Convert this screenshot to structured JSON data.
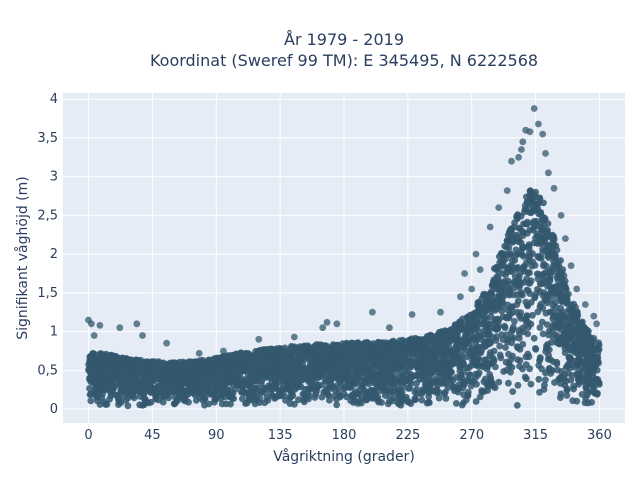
{
  "chart_data": {
    "type": "scatter",
    "title": "År 1979 - 2019",
    "subtitle": "Koordinat (Sweref 99 TM): E 345495, N 6222568",
    "xlabel": "Vågriktning (grader)",
    "ylabel": "Signifikant våghöjd (m)",
    "xlim": [
      -18,
      378
    ],
    "ylim": [
      -0.18,
      4.08
    ],
    "x_ticks": [
      0,
      45,
      90,
      135,
      180,
      225,
      270,
      315,
      360
    ],
    "x_tick_labels": [
      "0",
      "45",
      "90",
      "135",
      "180",
      "225",
      "270",
      "315",
      "360"
    ],
    "y_ticks": [
      0,
      0.5,
      1,
      1.5,
      2,
      2.5,
      3,
      3.5,
      4
    ],
    "y_tick_labels": [
      "0",
      "0,5",
      "1",
      "1,5",
      "2",
      "2,5",
      "3",
      "3,5",
      "4"
    ],
    "grid": true,
    "colors": {
      "marker": "#34586e",
      "plot_bg": "#e5ecf6",
      "grid": "#ffffff",
      "text": "#2a3f5f"
    },
    "envelope": {
      "direction": [
        0,
        15,
        30,
        45,
        60,
        75,
        90,
        105,
        120,
        135,
        150,
        165,
        180,
        195,
        210,
        225,
        240,
        255,
        270,
        280,
        290,
        300,
        310,
        315,
        320,
        330,
        340,
        350,
        360
      ],
      "typical_max_height": [
        0.75,
        0.7,
        0.65,
        0.62,
        0.6,
        0.62,
        0.66,
        0.72,
        0.76,
        0.8,
        0.82,
        0.84,
        0.85,
        0.86,
        0.87,
        0.9,
        0.95,
        1.05,
        1.25,
        1.55,
        2.0,
        2.45,
        2.8,
        2.9,
        2.7,
        2.1,
        1.45,
        1.05,
        0.85
      ]
    },
    "outliers": [
      {
        "x": 0,
        "y": 1.15
      },
      {
        "x": 2,
        "y": 1.1
      },
      {
        "x": 8,
        "y": 1.08
      },
      {
        "x": 4,
        "y": 0.95
      },
      {
        "x": 22,
        "y": 1.05
      },
      {
        "x": 34,
        "y": 1.1
      },
      {
        "x": 38,
        "y": 0.95
      },
      {
        "x": 55,
        "y": 0.85
      },
      {
        "x": 78,
        "y": 0.72
      },
      {
        "x": 95,
        "y": 0.75
      },
      {
        "x": 120,
        "y": 0.9
      },
      {
        "x": 145,
        "y": 0.93
      },
      {
        "x": 165,
        "y": 1.05
      },
      {
        "x": 168,
        "y": 1.12
      },
      {
        "x": 175,
        "y": 1.1
      },
      {
        "x": 200,
        "y": 1.25
      },
      {
        "x": 212,
        "y": 1.05
      },
      {
        "x": 228,
        "y": 1.22
      },
      {
        "x": 248,
        "y": 1.25
      },
      {
        "x": 262,
        "y": 1.45
      },
      {
        "x": 270,
        "y": 1.55
      },
      {
        "x": 265,
        "y": 1.75
      },
      {
        "x": 273,
        "y": 2.0
      },
      {
        "x": 276,
        "y": 1.8
      },
      {
        "x": 283,
        "y": 2.35
      },
      {
        "x": 289,
        "y": 2.6
      },
      {
        "x": 295,
        "y": 2.82
      },
      {
        "x": 298,
        "y": 3.2
      },
      {
        "x": 303,
        "y": 3.25
      },
      {
        "x": 305,
        "y": 3.35
      },
      {
        "x": 306,
        "y": 3.45
      },
      {
        "x": 308,
        "y": 3.6
      },
      {
        "x": 311,
        "y": 3.58
      },
      {
        "x": 314,
        "y": 3.88
      },
      {
        "x": 317,
        "y": 3.68
      },
      {
        "x": 320,
        "y": 3.55
      },
      {
        "x": 322,
        "y": 3.3
      },
      {
        "x": 324,
        "y": 3.05
      },
      {
        "x": 328,
        "y": 2.85
      },
      {
        "x": 333,
        "y": 2.5
      },
      {
        "x": 336,
        "y": 2.2
      },
      {
        "x": 340,
        "y": 1.85
      },
      {
        "x": 344,
        "y": 1.55
      },
      {
        "x": 350,
        "y": 1.35
      },
      {
        "x": 356,
        "y": 1.2
      },
      {
        "x": 358,
        "y": 1.1
      }
    ]
  }
}
